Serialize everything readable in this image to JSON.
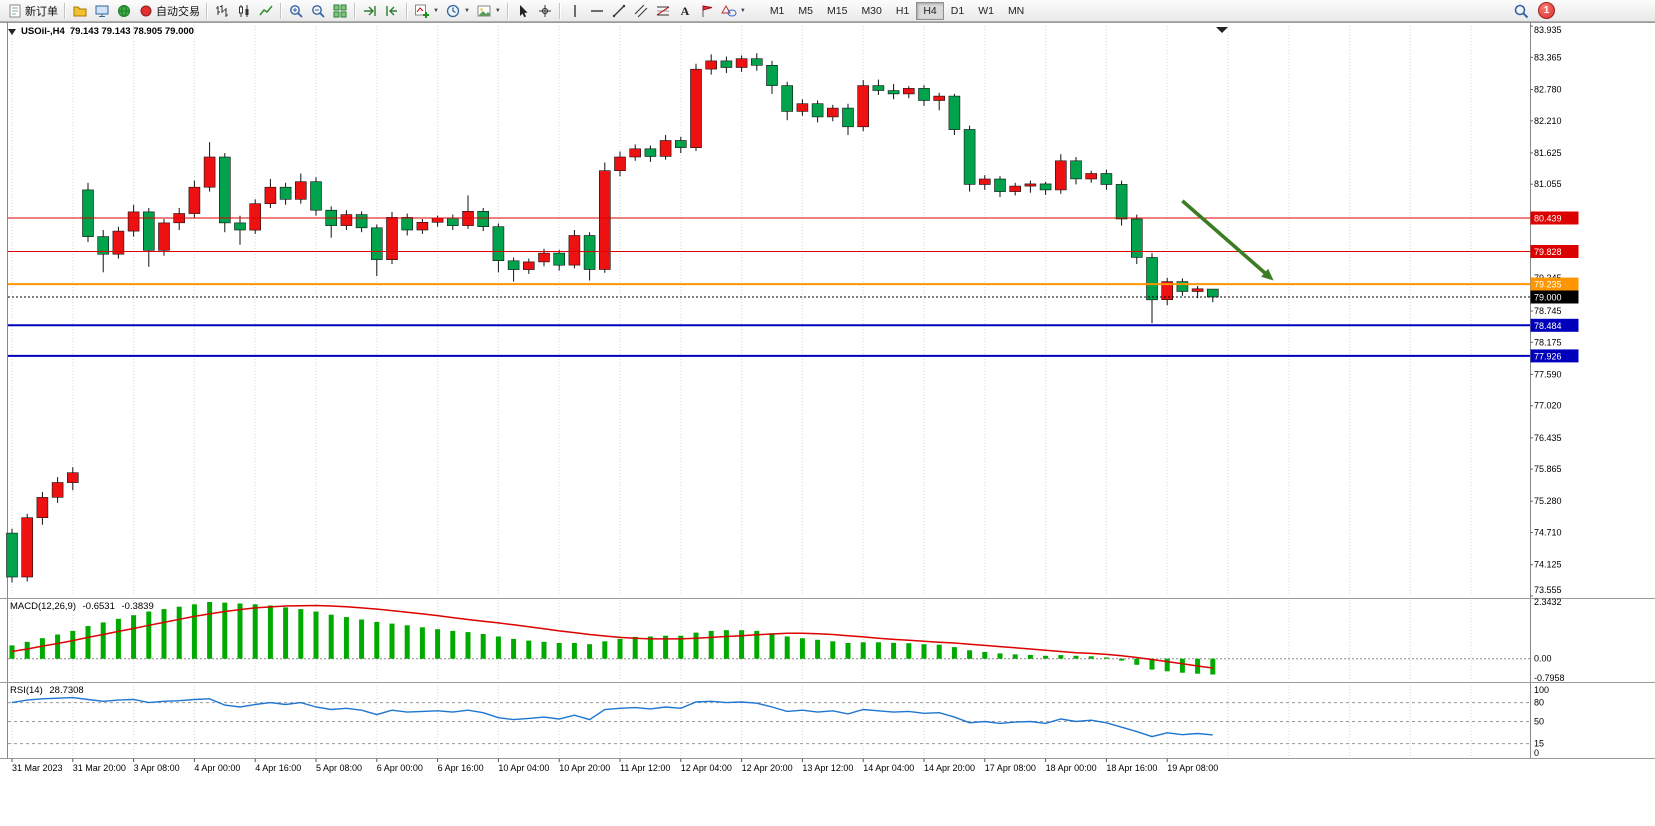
{
  "window": {
    "symbol_period": "USOil-,H4",
    "quote": "79.143 79.143 78.905 79.000"
  },
  "toolbar": {
    "groups": [
      {
        "items": [
          {
            "name": "new-order-button",
            "icon": "new-order-icon",
            "label": "新订单"
          }
        ]
      },
      {
        "items": [
          {
            "name": "profiles-button",
            "icon": "profiles-icon"
          },
          {
            "name": "market-watch-button",
            "icon": "market-watch-icon"
          },
          {
            "name": "navigator-button",
            "icon": "navigator-icon"
          },
          {
            "name": "autotrading-button",
            "icon": "autotrading-icon",
            "label": "自动交易"
          }
        ]
      },
      {
        "items": [
          {
            "name": "bar-chart-button",
            "icon": "bar-chart-icon"
          },
          {
            "name": "candlestick-chart-button",
            "icon": "candlestick-icon"
          },
          {
            "name": "line-chart-button",
            "icon": "line-chart-icon"
          }
        ]
      },
      {
        "items": [
          {
            "name": "zoom-in-button",
            "icon": "zoom-in-icon"
          },
          {
            "name": "zoom-out-button",
            "icon": "zoom-out-icon"
          },
          {
            "name": "tile-windows-button",
            "icon": "tile-windows-icon"
          }
        ]
      },
      {
        "items": [
          {
            "name": "auto-scroll-button",
            "icon": "auto-scroll-icon"
          },
          {
            "name": "chart-shift-button",
            "icon": "chart-shift-icon"
          }
        ]
      },
      {
        "items": [
          {
            "name": "indicators-button",
            "icon": "add-indicator-icon",
            "dropdown": true
          },
          {
            "name": "periods-button",
            "icon": "clock-icon",
            "dropdown": true
          },
          {
            "name": "templates-button",
            "icon": "template-icon",
            "dropdown": true
          }
        ]
      },
      {
        "items": [
          {
            "name": "cursor-button",
            "icon": "cursor-icon"
          },
          {
            "name": "crosshair-button",
            "icon": "crosshair-icon"
          }
        ]
      },
      {
        "items": [
          {
            "name": "vertical-line-button",
            "icon": "vertical-line-icon"
          },
          {
            "name": "horizontal-line-button",
            "icon": "horizontal-line-icon"
          },
          {
            "name": "trendline-button",
            "icon": "trendline-icon"
          },
          {
            "name": "channel-button",
            "icon": "channel-icon"
          },
          {
            "name": "fibonacci-button",
            "icon": "fibonacci-icon"
          },
          {
            "name": "text-button",
            "icon": "text-icon"
          },
          {
            "name": "label-button",
            "icon": "label-icon"
          },
          {
            "name": "shapes-button",
            "icon": "shapes-icon",
            "dropdown": true
          }
        ]
      }
    ],
    "timeframes": {
      "options": [
        "M1",
        "M5",
        "M15",
        "M30",
        "H1",
        "H4",
        "D1",
        "W1",
        "MN"
      ],
      "active": "H4"
    },
    "notification_count": "1"
  },
  "chart_data": {
    "type": "candlestick",
    "symbol": "USOil",
    "period": "H4",
    "title": "USOil-,H4 79.143 79.143 78.905 79.000",
    "current": {
      "open": "79.143",
      "high": "79.143",
      "low": "78.905",
      "close": "79.000"
    },
    "colors": {
      "bull": "#ee1111",
      "bear": "#00a24c",
      "wick": "#111111",
      "hline_red": "#dd0000",
      "hline_orange": "#ff9500",
      "hline_blue": "#0000bb",
      "bid": "#000000",
      "arrow": "#3c7d23",
      "macd_histogram": "#00aa00",
      "macd_signal": "#dd0000",
      "rsi": "#1e76d2"
    },
    "price_axis": {
      "grid_labels": [
        "83.935",
        "83.365",
        "82.780",
        "82.210",
        "81.625",
        "81.055",
        "79.345",
        "78.745",
        "78.175",
        "77.590",
        "77.020",
        "76.435",
        "75.865",
        "75.280",
        "74.710",
        "74.125",
        "73.555"
      ],
      "badges": [
        {
          "value": "80.439",
          "color": "#dd0000"
        },
        {
          "value": "79.828",
          "color": "#dd0000"
        },
        {
          "value": "79.235",
          "color": "#ff9500"
        },
        {
          "value": "79.000",
          "color": "#000000"
        },
        {
          "value": "78.484",
          "color": "#0000bb"
        },
        {
          "value": "77.926",
          "color": "#0000bb"
        }
      ]
    },
    "time_labels": [
      "31 Mar 2023",
      "31 Mar 20:00",
      "3 Apr 08:00",
      "4 Apr 00:00",
      "4 Apr 16:00",
      "5 Apr 08:00",
      "6 Apr 00:00",
      "6 Apr 16:00",
      "10 Apr 04:00",
      "10 Apr 20:00",
      "11 Apr 12:00",
      "12 Apr 04:00",
      "12 Apr 20:00",
      "13 Apr 12:00",
      "14 Apr 04:00",
      "14 Apr 20:00",
      "17 Apr 08:00",
      "18 Apr 00:00",
      "18 Apr 16:00",
      "19 Apr 08:00"
    ],
    "hlines": [
      {
        "price": 80.439,
        "color": "#dd0000",
        "width": 1
      },
      {
        "price": 79.828,
        "color": "#dd0000",
        "width": 1
      },
      {
        "price": 79.235,
        "color": "#ff9500",
        "width": 2
      },
      {
        "price": 78.484,
        "color": "#0000bb",
        "width": 2
      },
      {
        "price": 77.926,
        "color": "#0000bb",
        "width": 2
      }
    ],
    "bid_line": 79.0,
    "arrow": {
      "from": {
        "bar": 77,
        "price": 80.75
      },
      "to": {
        "bar": 83,
        "price": 79.3
      }
    },
    "candles": [
      [
        74.7,
        74.78,
        73.8,
        73.9
      ],
      [
        73.9,
        75.05,
        73.82,
        74.98
      ],
      [
        74.98,
        75.45,
        74.85,
        75.35
      ],
      [
        75.35,
        75.72,
        75.25,
        75.62
      ],
      [
        75.62,
        75.9,
        75.48,
        75.8
      ],
      [
        80.95,
        81.08,
        80.0,
        80.1
      ],
      [
        80.1,
        80.22,
        79.45,
        79.78
      ],
      [
        79.78,
        80.28,
        79.7,
        80.2
      ],
      [
        80.2,
        80.68,
        80.1,
        80.55
      ],
      [
        80.55,
        80.62,
        79.55,
        79.85
      ],
      [
        79.85,
        80.42,
        79.75,
        80.35
      ],
      [
        80.35,
        80.62,
        80.22,
        80.52
      ],
      [
        80.52,
        81.12,
        80.45,
        81.0
      ],
      [
        81.0,
        81.82,
        80.92,
        81.55
      ],
      [
        81.55,
        81.62,
        80.18,
        80.35
      ],
      [
        80.35,
        80.48,
        79.95,
        80.22
      ],
      [
        80.22,
        80.78,
        80.15,
        80.7
      ],
      [
        80.7,
        81.15,
        80.62,
        81.0
      ],
      [
        81.0,
        81.08,
        80.68,
        80.78
      ],
      [
        80.78,
        81.25,
        80.7,
        81.1
      ],
      [
        81.1,
        81.18,
        80.48,
        80.58
      ],
      [
        80.58,
        80.65,
        80.08,
        80.3
      ],
      [
        80.3,
        80.58,
        80.22,
        80.5
      ],
      [
        80.5,
        80.56,
        80.18,
        80.26
      ],
      [
        80.26,
        80.32,
        79.38,
        79.68
      ],
      [
        79.68,
        80.55,
        79.6,
        80.45
      ],
      [
        80.45,
        80.52,
        80.12,
        80.22
      ],
      [
        80.22,
        80.42,
        80.15,
        80.36
      ],
      [
        80.36,
        80.48,
        80.28,
        80.44
      ],
      [
        80.44,
        80.5,
        80.22,
        80.3
      ],
      [
        80.3,
        80.85,
        80.24,
        80.56
      ],
      [
        80.56,
        80.62,
        80.2,
        80.28
      ],
      [
        80.28,
        80.34,
        79.45,
        79.66
      ],
      [
        79.66,
        79.72,
        79.28,
        79.5
      ],
      [
        79.5,
        79.7,
        79.42,
        79.64
      ],
      [
        79.64,
        79.88,
        79.56,
        79.8
      ],
      [
        79.8,
        79.86,
        79.48,
        79.58
      ],
      [
        79.58,
        80.22,
        79.52,
        80.12
      ],
      [
        80.12,
        80.18,
        79.3,
        79.5
      ],
      [
        79.5,
        81.45,
        79.44,
        81.3
      ],
      [
        81.3,
        81.65,
        81.2,
        81.55
      ],
      [
        81.55,
        81.78,
        81.48,
        81.7
      ],
      [
        81.7,
        81.76,
        81.46,
        81.56
      ],
      [
        81.56,
        81.95,
        81.5,
        81.85
      ],
      [
        81.85,
        81.92,
        81.62,
        81.72
      ],
      [
        81.72,
        83.25,
        81.66,
        83.15
      ],
      [
        83.15,
        83.42,
        83.05,
        83.3
      ],
      [
        83.3,
        83.38,
        83.08,
        83.18
      ],
      [
        83.18,
        83.4,
        83.1,
        83.34
      ],
      [
        83.34,
        83.44,
        83.12,
        83.22
      ],
      [
        83.22,
        83.3,
        82.7,
        82.85
      ],
      [
        82.85,
        82.92,
        82.22,
        82.38
      ],
      [
        82.38,
        82.6,
        82.3,
        82.52
      ],
      [
        82.52,
        82.58,
        82.18,
        82.28
      ],
      [
        82.28,
        82.5,
        82.2,
        82.44
      ],
      [
        82.44,
        82.52,
        81.95,
        82.1
      ],
      [
        82.1,
        82.95,
        82.02,
        82.85
      ],
      [
        82.85,
        82.96,
        82.68,
        82.76
      ],
      [
        82.76,
        82.88,
        82.6,
        82.7
      ],
      [
        82.7,
        82.84,
        82.62,
        82.8
      ],
      [
        82.8,
        82.86,
        82.48,
        82.58
      ],
      [
        82.58,
        82.72,
        82.4,
        82.66
      ],
      [
        82.66,
        82.7,
        81.95,
        82.05
      ],
      [
        82.05,
        82.12,
        80.92,
        81.05
      ],
      [
        81.05,
        81.22,
        80.95,
        81.15
      ],
      [
        81.15,
        81.2,
        80.82,
        80.92
      ],
      [
        80.92,
        81.08,
        80.85,
        81.02
      ],
      [
        81.02,
        81.12,
        80.9,
        81.06
      ],
      [
        81.06,
        81.1,
        80.86,
        80.95
      ],
      [
        80.95,
        81.6,
        80.88,
        81.48
      ],
      [
        81.48,
        81.55,
        81.05,
        81.15
      ],
      [
        81.15,
        81.3,
        81.08,
        81.25
      ],
      [
        81.25,
        81.32,
        80.95,
        81.05
      ],
      [
        81.05,
        81.12,
        80.3,
        80.42
      ],
      [
        80.42,
        80.5,
        79.6,
        79.72
      ],
      [
        79.72,
        79.8,
        78.52,
        78.95
      ],
      [
        78.95,
        79.35,
        78.85,
        79.28
      ],
      [
        79.28,
        79.34,
        79.02,
        79.1
      ],
      [
        79.1,
        79.2,
        78.98,
        79.15
      ],
      [
        79.143,
        79.143,
        78.905,
        79.0
      ]
    ],
    "indicators": {
      "macd": {
        "label": "MACD(12,26,9)",
        "value_main": "-0.6531",
        "value_signal": "-0.3839",
        "axis_labels": [
          "2.3432",
          "0.00",
          "-0.7958"
        ],
        "histogram": [
          0.55,
          0.7,
          0.85,
          1.0,
          1.15,
          1.35,
          1.5,
          1.65,
          1.8,
          1.95,
          2.05,
          2.15,
          2.25,
          2.3432,
          2.32,
          2.28,
          2.25,
          2.2,
          2.12,
          2.05,
          1.95,
          1.82,
          1.72,
          1.62,
          1.52,
          1.45,
          1.38,
          1.3,
          1.22,
          1.15,
          1.1,
          1.02,
          0.92,
          0.82,
          0.75,
          0.7,
          0.65,
          0.65,
          0.6,
          0.72,
          0.82,
          0.9,
          0.92,
          0.95,
          0.95,
          1.08,
          1.15,
          1.18,
          1.18,
          1.15,
          1.05,
          0.92,
          0.85,
          0.78,
          0.72,
          0.65,
          0.68,
          0.68,
          0.66,
          0.64,
          0.6,
          0.58,
          0.48,
          0.35,
          0.28,
          0.22,
          0.18,
          0.16,
          0.12,
          0.15,
          0.12,
          0.1,
          0.05,
          -0.08,
          -0.25,
          -0.45,
          -0.52,
          -0.58,
          -0.62,
          -0.6531
        ],
        "signal": [
          0.3,
          0.4,
          0.52,
          0.63,
          0.75,
          0.88,
          1.0,
          1.13,
          1.25,
          1.38,
          1.5,
          1.63,
          1.75,
          1.85,
          1.95,
          2.03,
          2.1,
          2.14,
          2.18,
          2.19,
          2.2,
          2.18,
          2.15,
          2.1,
          2.05,
          1.99,
          1.92,
          1.85,
          1.78,
          1.7,
          1.62,
          1.55,
          1.48,
          1.4,
          1.32,
          1.24,
          1.15,
          1.08,
          1.0,
          0.94,
          0.88,
          0.85,
          0.82,
          0.82,
          0.82,
          0.85,
          0.88,
          0.92,
          0.95,
          0.99,
          1.02,
          1.05,
          1.05,
          1.03,
          1.0,
          0.95,
          0.9,
          0.85,
          0.8,
          0.76,
          0.72,
          0.68,
          0.65,
          0.6,
          0.55,
          0.5,
          0.45,
          0.4,
          0.35,
          0.3,
          0.25,
          0.22,
          0.18,
          0.12,
          0.05,
          -0.03,
          -0.12,
          -0.21,
          -0.3,
          -0.3839
        ]
      },
      "rsi": {
        "label": "RSI(14)",
        "value": "28.7308",
        "levels": [
          80,
          50,
          15
        ],
        "axis_labels": [
          "100",
          "80",
          "50",
          "15",
          "0"
        ],
        "series": [
          80,
          84,
          86,
          87,
          88,
          85,
          82,
          84,
          85,
          80,
          82,
          83,
          85,
          86,
          76,
          73,
          77,
          80,
          77,
          80,
          73,
          69,
          71,
          68,
          61,
          68,
          65,
          66,
          67,
          65,
          68,
          64,
          56,
          53,
          55,
          57,
          54,
          60,
          53,
          69,
          71,
          72,
          70,
          73,
          71,
          81,
          82,
          80,
          81,
          79,
          73,
          66,
          68,
          65,
          67,
          62,
          69,
          67,
          65,
          66,
          63,
          64,
          57,
          48,
          50,
          47,
          49,
          50,
          47,
          54,
          50,
          52,
          48,
          41,
          34,
          26,
          32,
          29,
          31,
          28.7308
        ]
      }
    }
  }
}
